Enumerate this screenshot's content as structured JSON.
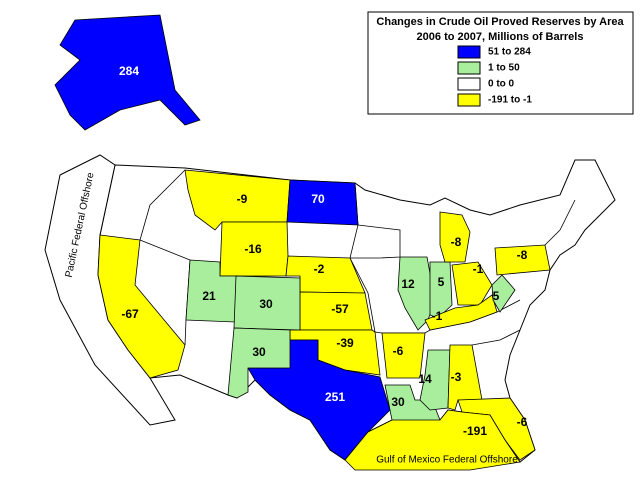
{
  "title": "Changes in Crude Oil Proved Reserves by Area",
  "subtitle": "2006 to 2007, Millions of Barrels",
  "legend": [
    {
      "label": "51 to 284",
      "color": "#0000ff"
    },
    {
      "label": "1 to 50",
      "color": "#a8ee9c"
    },
    {
      "label": "0 to 0",
      "color": "#ffffff"
    },
    {
      "label": "-191 to -1",
      "color": "#ffff00"
    }
  ],
  "regions": [
    {
      "value": 284,
      "color": "#0000ff"
    },
    {
      "value": -9,
      "color": "#ffff00"
    },
    {
      "value": 70,
      "color": "#0000ff"
    },
    {
      "value": -16,
      "color": "#ffff00"
    },
    {
      "value": -2,
      "color": "#ffff00"
    },
    {
      "value": -57,
      "color": "#ffff00"
    },
    {
      "value": -39,
      "color": "#ffff00"
    },
    {
      "value": 251,
      "color": "#0000ff"
    },
    {
      "value": 30,
      "color": "#a8ee9c"
    },
    {
      "value": 21,
      "color": "#a8ee9c"
    },
    {
      "value": 30,
      "color": "#a8ee9c"
    },
    {
      "value": 30,
      "color": "#a8ee9c"
    },
    {
      "value": -67,
      "color": "#ffff00"
    },
    {
      "value": -6,
      "color": "#ffff00"
    },
    {
      "value": 14,
      "color": "#a8ee9c"
    },
    {
      "value": -3,
      "color": "#ffff00"
    },
    {
      "value": 12,
      "color": "#a8ee9c"
    },
    {
      "value": 5,
      "color": "#a8ee9c"
    },
    {
      "value": -8,
      "color": "#ffff00"
    },
    {
      "value": -1,
      "color": "#ffff00"
    },
    {
      "value": -1,
      "color": "#ffff00"
    },
    {
      "value": 5,
      "color": "#a8ee9c"
    },
    {
      "value": -8,
      "color": "#ffff00"
    },
    {
      "value": -6,
      "color": "#ffff00"
    },
    {
      "value": -191,
      "color": "#ffff00"
    }
  ],
  "offshore_labels": [
    "Pacific Federal Offshore",
    "Gulf of Mexico Federal Offshore"
  ]
}
